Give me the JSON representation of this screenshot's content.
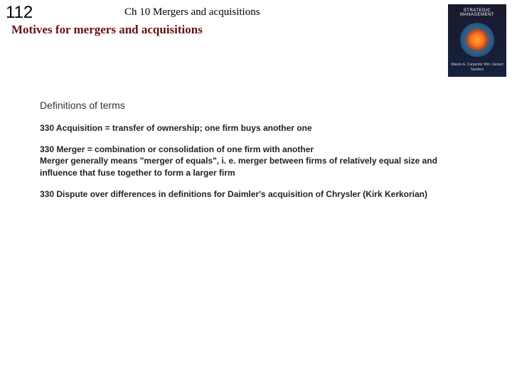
{
  "slide_number": "112",
  "chapter_title": "Ch 10  Mergers and acquisitions",
  "section_title": "Motives for mergers and acquisitions",
  "book": {
    "title": "STRATEGIC MANAGEMENT",
    "authors": "Mason A. Carpenter\nWm. Gerard Sanders"
  },
  "content": {
    "subheading": "Definitions of terms",
    "para1": "330 Acquisition = transfer of ownership; one firm buys another one",
    "para2": "330 Merger = combination or consolidation of one firm with another\nMerger generally means \"merger of equals\", i. e. merger between firms of relatively equal size and influence that fuse together to form a larger firm",
    "para3": "330 Dispute over differences in definitions for Daimler's acquisition of Chrysler (Kirk Kerkorian)"
  },
  "colors": {
    "section_title": "#6b0f0f",
    "background": "#ffffff",
    "body_text": "#222222",
    "subheading": "#333333"
  },
  "typography": {
    "slide_number_fontsize": 24,
    "chapter_title_fontsize": 15,
    "section_title_fontsize": 17,
    "subheading_fontsize": 14,
    "body_fontsize": 12
  }
}
